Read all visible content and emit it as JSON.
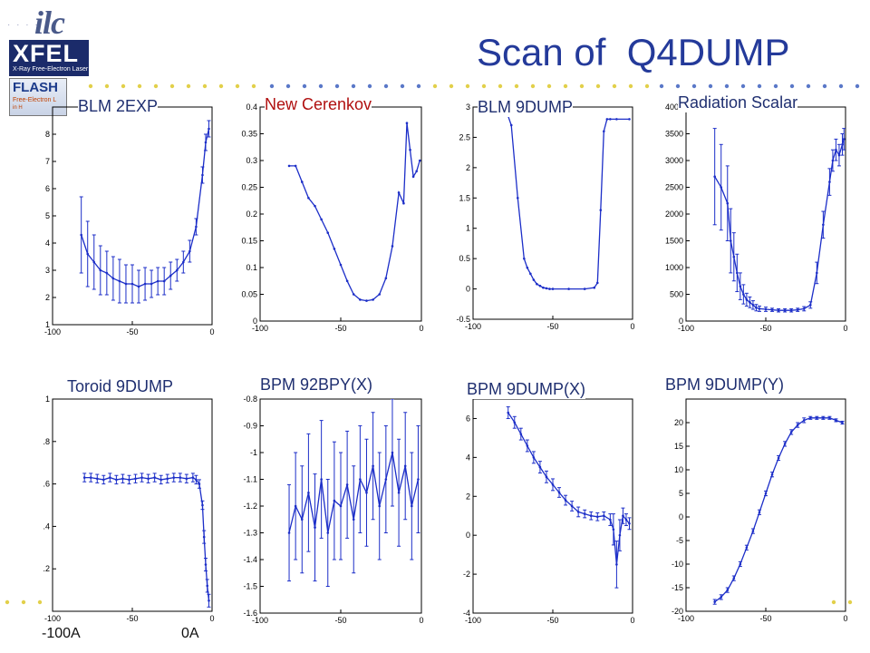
{
  "header": {
    "title": "Scan of  Q4DUMP",
    "logos": {
      "ilc": "ilc",
      "xfel": "XFEL",
      "xfel_sub": "X-Ray Free-Electron Laser",
      "flash": "FLASH",
      "flash_sub": "Free-Electron L",
      "flash_sub2": "in H"
    }
  },
  "colors": {
    "title": "#243a9a",
    "plot_line": "#1c2ec8",
    "label": "#1f2f70",
    "label_red": "#b01010",
    "dots_yellow": "#e2d04a",
    "dots_blue": "#5a78c8"
  },
  "bottom_labels": {
    "left": "-100A",
    "right": "0A"
  },
  "chart_data": [
    {
      "type": "line",
      "title": "BLM 2EXP",
      "xlim": [
        -100,
        0
      ],
      "ylim": [
        1,
        9
      ],
      "xticks": [
        -100,
        -50,
        0
      ],
      "yticks": [
        1,
        2,
        3,
        4,
        5,
        6,
        7,
        8
      ],
      "x": [
        -82,
        -78,
        -74,
        -70,
        -66,
        -62,
        -58,
        -54,
        -50,
        -46,
        -42,
        -38,
        -34,
        -30,
        -26,
        -22,
        -18,
        -14,
        -10,
        -6,
        -4,
        -2
      ],
      "y": [
        4.3,
        3.6,
        3.3,
        3.0,
        2.9,
        2.7,
        2.6,
        2.5,
        2.5,
        2.4,
        2.5,
        2.5,
        2.6,
        2.6,
        2.8,
        3.0,
        3.3,
        3.7,
        4.6,
        6.5,
        7.7,
        8.2
      ],
      "err": [
        1.4,
        1.2,
        1.0,
        0.9,
        0.8,
        0.8,
        0.8,
        0.7,
        0.7,
        0.6,
        0.6,
        0.5,
        0.5,
        0.5,
        0.5,
        0.4,
        0.4,
        0.4,
        0.3,
        0.3,
        0.3,
        0.3
      ]
    },
    {
      "type": "line",
      "title": "New Cerenkov",
      "xlim": [
        -100,
        0
      ],
      "ylim": [
        0,
        0.4
      ],
      "xticks": [
        -100,
        -50,
        0
      ],
      "yticks": [
        0,
        0.05,
        0.1,
        0.15,
        0.2,
        0.25,
        0.3,
        0.35,
        0.4
      ],
      "x": [
        -82,
        -78,
        -74,
        -70,
        -66,
        -62,
        -58,
        -54,
        -50,
        -46,
        -42,
        -38,
        -34,
        -30,
        -26,
        -22,
        -18,
        -14,
        -11,
        -9,
        -7,
        -5,
        -3,
        -1
      ],
      "y": [
        0.29,
        0.29,
        0.26,
        0.23,
        0.215,
        0.19,
        0.165,
        0.135,
        0.105,
        0.075,
        0.05,
        0.04,
        0.038,
        0.04,
        0.05,
        0.08,
        0.14,
        0.24,
        0.22,
        0.37,
        0.32,
        0.27,
        0.28,
        0.3
      ],
      "err": []
    },
    {
      "type": "line",
      "title": "BLM 9DUMP",
      "xlim": [
        -100,
        0
      ],
      "ylim": [
        -0.5,
        3
      ],
      "xticks": [
        -100,
        -50,
        0
      ],
      "yticks": [
        -0.5,
        0,
        0.5,
        1,
        1.5,
        2,
        2.5,
        3
      ],
      "x": [
        -80,
        -76,
        -72,
        -68,
        -66,
        -64,
        -62,
        -60,
        -58,
        -56,
        -54,
        -52,
        -50,
        -40,
        -30,
        -24,
        -22,
        -20,
        -18,
        -16,
        -14,
        -10,
        -2
      ],
      "y": [
        3.0,
        2.7,
        1.5,
        0.5,
        0.35,
        0.25,
        0.15,
        0.08,
        0.05,
        0.02,
        0.01,
        0.0,
        0.0,
        0.0,
        0.0,
        0.02,
        0.1,
        1.3,
        2.6,
        2.8,
        2.8,
        2.8,
        2.8
      ],
      "err": []
    },
    {
      "type": "line",
      "title": "Radiation Scalar",
      "xlim": [
        -100,
        0
      ],
      "ylim": [
        0,
        4000
      ],
      "xticks": [
        -100,
        -50,
        0
      ],
      "yticks": [
        0,
        500,
        1000,
        1500,
        2000,
        2500,
        3000,
        3500,
        4000
      ],
      "x": [
        -82,
        -78,
        -74,
        -72,
        -70,
        -68,
        -66,
        -64,
        -62,
        -60,
        -58,
        -56,
        -54,
        -50,
        -46,
        -42,
        -38,
        -34,
        -30,
        -26,
        -22,
        -18,
        -14,
        -10,
        -8,
        -6,
        -4,
        -2,
        -1
      ],
      "y": [
        2700,
        2500,
        2200,
        1500,
        1200,
        900,
        650,
        500,
        400,
        350,
        300,
        250,
        230,
        220,
        210,
        200,
        200,
        200,
        210,
        230,
        300,
        900,
        1800,
        2600,
        3000,
        3200,
        3100,
        3300,
        3400
      ],
      "err": [
        900,
        800,
        700,
        600,
        450,
        350,
        250,
        180,
        120,
        100,
        80,
        60,
        50,
        40,
        30,
        30,
        30,
        30,
        30,
        40,
        60,
        200,
        250,
        250,
        200,
        200,
        200,
        200,
        200
      ]
    },
    {
      "type": "line",
      "title": "Toroid 9DUMP",
      "xlim": [
        -100,
        0
      ],
      "ylim": [
        0,
        1
      ],
      "xticks": [
        -100,
        -50,
        0
      ],
      "yticks": [
        0,
        0.2,
        0.4,
        0.6,
        0.8,
        1
      ],
      "ytick_labels": [
        "",
        ".2",
        ".4",
        ".6",
        ".8",
        "1"
      ],
      "x": [
        -80,
        -76,
        -72,
        -68,
        -64,
        -60,
        -56,
        -52,
        -48,
        -44,
        -40,
        -36,
        -32,
        -28,
        -24,
        -20,
        -16,
        -12,
        -10,
        -8,
        -6,
        -5,
        -4,
        -3,
        -2
      ],
      "y": [
        0.63,
        0.63,
        0.625,
        0.62,
        0.63,
        0.62,
        0.625,
        0.62,
        0.625,
        0.63,
        0.625,
        0.63,
        0.62,
        0.625,
        0.63,
        0.63,
        0.625,
        0.63,
        0.62,
        0.6,
        0.5,
        0.35,
        0.22,
        0.12,
        0.05
      ],
      "err": [
        0.02,
        0.02,
        0.02,
        0.02,
        0.02,
        0.02,
        0.02,
        0.02,
        0.02,
        0.02,
        0.02,
        0.02,
        0.02,
        0.02,
        0.02,
        0.02,
        0.02,
        0.02,
        0.02,
        0.02,
        0.02,
        0.03,
        0.03,
        0.03,
        0.03
      ]
    },
    {
      "type": "line",
      "title": "BPM 92BPY(X)",
      "xlim": [
        -100,
        0
      ],
      "ylim": [
        -1.6,
        -0.8
      ],
      "xticks": [
        -100,
        -50,
        0
      ],
      "yticks": [
        -1.6,
        -1.5,
        -1.4,
        -1.3,
        -1.2,
        -1.1,
        -1.0,
        -0.9,
        -0.8
      ],
      "x": [
        -82,
        -78,
        -74,
        -70,
        -66,
        -62,
        -58,
        -54,
        -50,
        -46,
        -42,
        -38,
        -34,
        -30,
        -26,
        -22,
        -18,
        -14,
        -10,
        -6,
        -2
      ],
      "y": [
        -1.3,
        -1.2,
        -1.25,
        -1.15,
        -1.28,
        -1.1,
        -1.3,
        -1.18,
        -1.2,
        -1.12,
        -1.25,
        -1.1,
        -1.15,
        -1.05,
        -1.2,
        -1.1,
        -1.0,
        -1.15,
        -1.05,
        -1.2,
        -1.1
      ],
      "err": [
        0.18,
        0.2,
        0.2,
        0.22,
        0.2,
        0.22,
        0.2,
        0.22,
        0.2,
        0.2,
        0.2,
        0.2,
        0.2,
        0.2,
        0.2,
        0.2,
        0.2,
        0.2,
        0.2,
        0.2,
        0.2
      ]
    },
    {
      "type": "line",
      "title": "BPM 9DUMP(X)",
      "xlim": [
        -100,
        0
      ],
      "ylim": [
        -4,
        7
      ],
      "xticks": [
        -100,
        -50,
        0
      ],
      "yticks": [
        -4,
        -2,
        0,
        2,
        4,
        6
      ],
      "x": [
        -78,
        -74,
        -70,
        -66,
        -62,
        -58,
        -54,
        -50,
        -46,
        -42,
        -38,
        -34,
        -30,
        -26,
        -22,
        -18,
        -14,
        -12,
        -10,
        -8,
        -6,
        -4,
        -2
      ],
      "y": [
        6.3,
        5.8,
        5.2,
        4.6,
        4.0,
        3.5,
        3.0,
        2.6,
        2.2,
        1.8,
        1.5,
        1.2,
        1.1,
        1.0,
        0.95,
        1.0,
        0.8,
        0.3,
        -1.5,
        0.0,
        1.0,
        0.8,
        0.6
      ],
      "err": [
        0.3,
        0.3,
        0.3,
        0.3,
        0.3,
        0.3,
        0.3,
        0.3,
        0.25,
        0.25,
        0.25,
        0.25,
        0.2,
        0.2,
        0.2,
        0.2,
        0.3,
        0.8,
        1.2,
        0.8,
        0.4,
        0.3,
        0.3
      ]
    },
    {
      "type": "line",
      "title": "BPM 9DUMP(Y)",
      "xlim": [
        -100,
        0
      ],
      "ylim": [
        -20,
        25
      ],
      "xticks": [
        -100,
        -50,
        0
      ],
      "yticks": [
        -20,
        -15,
        -10,
        -5,
        0,
        5,
        10,
        15,
        20
      ],
      "x": [
        -82,
        -78,
        -74,
        -70,
        -66,
        -62,
        -58,
        -54,
        -50,
        -46,
        -42,
        -38,
        -34,
        -30,
        -26,
        -22,
        -18,
        -14,
        -10,
        -6,
        -2
      ],
      "y": [
        -18,
        -17,
        -15.5,
        -13,
        -10,
        -6.5,
        -3,
        1,
        5,
        9,
        12.5,
        15.5,
        18,
        19.5,
        20.5,
        21,
        21,
        21,
        21,
        20.5,
        20
      ],
      "err": [
        0.5,
        0.5,
        0.5,
        0.5,
        0.5,
        0.5,
        0.5,
        0.5,
        0.5,
        0.5,
        0.5,
        0.5,
        0.5,
        0.5,
        0.5,
        0.3,
        0.3,
        0.3,
        0.3,
        0.3,
        0.3
      ]
    }
  ]
}
